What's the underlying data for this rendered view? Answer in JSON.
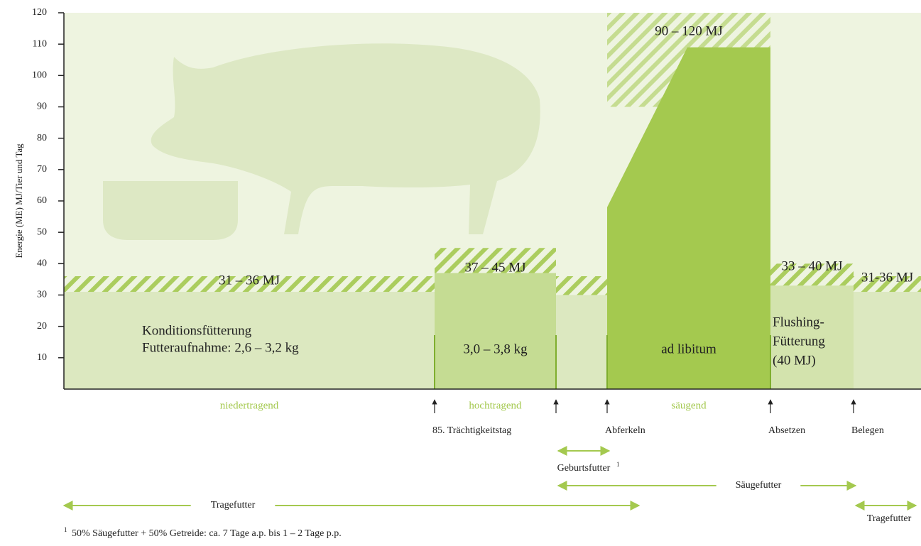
{
  "chart_data": {
    "type": "phases",
    "ylabel": "Energie (ME) MJ/Tier und Tag",
    "ylim": [
      0,
      120
    ],
    "yticks": [
      10,
      20,
      30,
      40,
      50,
      60,
      70,
      80,
      90,
      100,
      110,
      120
    ],
    "hatch_color": "#a4c94f",
    "phases": [
      {
        "name": "niedertragend",
        "range": "31 – 36 MJ",
        "low": 31,
        "high": 36,
        "note": [
          "Konditionsfütterung",
          "Futteraufnahme: 2,6 – 3,2 kg"
        ],
        "color": "#dce8c0"
      },
      {
        "name": "hochtragend",
        "range": "37 – 45 MJ",
        "low": 37,
        "high": 45,
        "note": [
          "3,0 – 3,8 kg"
        ],
        "color": "#c5dc93"
      },
      {
        "name": null,
        "range": null,
        "low": 30,
        "high": 36,
        "note": null,
        "color": "#dce8c0"
      },
      {
        "name": "säugend",
        "range": "90 – 120 MJ",
        "low": 90,
        "high": 120,
        "start": 58,
        "level": 109,
        "note": [
          "ad libitum"
        ],
        "color": "#a4c94f"
      },
      {
        "name": null,
        "range": "33 – 40 MJ",
        "low": 33,
        "high": 40,
        "note": [
          "Flushing-",
          "Fütterung",
          "(40 MJ)"
        ],
        "color": "#d3e3ad"
      },
      {
        "name": null,
        "range": "31-36 MJ",
        "low": 31,
        "high": 36,
        "note": null,
        "color": "#dce8c0"
      }
    ],
    "events": [
      "85. Trächtigkeitstag",
      null,
      "Abferkeln",
      "Absetzen",
      "Belegen"
    ],
    "feeds": [
      {
        "label": "Geburtsfutter",
        "sup": "1"
      },
      {
        "label": "Säugefutter"
      },
      {
        "label": "Tragefutter"
      },
      {
        "label": "Tragefutter"
      }
    ],
    "footnote": {
      "sup": "1",
      "text": "50% Säugefutter + 50% Getreide: ca. 7 Tage a.p. bis 1 – 2 Tage p.p."
    }
  }
}
